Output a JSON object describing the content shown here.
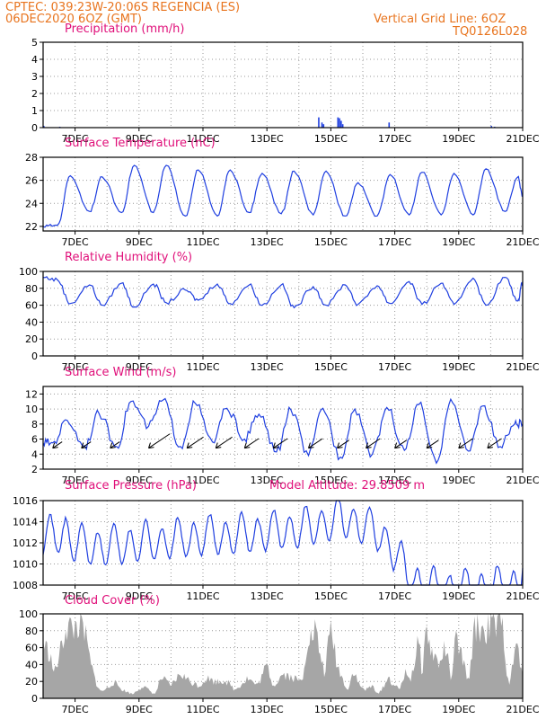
{
  "header": {
    "line1": "CPTEC:   039:23W-20:06S   REGENCIA (ES)",
    "date": "06DEC2020 6OZ (GMT)",
    "grid_note": "Vertical Grid Line: 6OZ",
    "code": "TQ0126L028"
  },
  "colors": {
    "header": "#e8741e",
    "title": "#e0107a",
    "line": "#1f3fe0",
    "cloud": "#a6a6a6",
    "grid": "#999999"
  },
  "chart_data": [
    {
      "id": "precip",
      "type": "bar",
      "title": "Precipitation  (mm/h)",
      "ylim": [
        0,
        5
      ],
      "yticks": [
        0,
        1,
        2,
        3,
        4,
        5
      ],
      "xticks": [
        "7DEC",
        "9DEC",
        "11DEC",
        "13DEC",
        "15DEC",
        "17DEC",
        "19DEC",
        "21DEC"
      ],
      "x": [
        0.0,
        0.5,
        8.6,
        8.7,
        8.75,
        9.2,
        9.25,
        9.3,
        9.35,
        10.8,
        14.0,
        14.1
      ],
      "values": [
        0.1,
        0.05,
        0.6,
        0.3,
        0.2,
        0.6,
        0.55,
        0.4,
        0.2,
        0.3,
        0.1,
        0.05
      ]
    },
    {
      "id": "temp",
      "type": "line",
      "title": "Surface Temperature (nC)",
      "ylim": [
        21.6,
        28
      ],
      "yticks": [
        22,
        24,
        26,
        28
      ],
      "xticks": [
        "7DEC",
        "9DEC",
        "11DEC",
        "13DEC",
        "15DEC",
        "17DEC",
        "19DEC",
        "21DEC"
      ],
      "daily_min": [
        22.1,
        23.3,
        23.2,
        23.2,
        22.9,
        22.9,
        23.2,
        23.1,
        23.0,
        22.9,
        22.9,
        23.0,
        23.0,
        23.0,
        23.3
      ],
      "daily_max": [
        26.4,
        26.3,
        27.3,
        27.3,
        26.9,
        26.9,
        26.6,
        26.8,
        26.8,
        25.8,
        26.5,
        26.7,
        26.6,
        27.0,
        26.3
      ],
      "end_value": 24.6
    },
    {
      "id": "rh",
      "type": "line",
      "title": "Relative Humidity  (%)",
      "ylim": [
        0,
        100
      ],
      "yticks": [
        0,
        20,
        40,
        60,
        80,
        100
      ],
      "xticks": [
        "7DEC",
        "9DEC",
        "11DEC",
        "13DEC",
        "15DEC",
        "17DEC",
        "19DEC",
        "21DEC"
      ],
      "daily_min": [
        62,
        60,
        58,
        63,
        66,
        62,
        60,
        57,
        60,
        61,
        62,
        61,
        61,
        60,
        65
      ],
      "daily_max": [
        90,
        84,
        86,
        85,
        78,
        85,
        84,
        84,
        82,
        84,
        83,
        88,
        86,
        92,
        93
      ],
      "start_value": 93,
      "end_value": 88
    },
    {
      "id": "wind",
      "type": "line",
      "title": "Surface Wind  (m/s)",
      "ylim": [
        2,
        13
      ],
      "yticks": [
        2,
        4,
        6,
        8,
        10,
        12
      ],
      "xticks": [
        "7DEC",
        "9DEC",
        "11DEC",
        "13DEC",
        "15DEC",
        "17DEC",
        "19DEC",
        "21DEC"
      ],
      "daily_min": [
        5.5,
        5.1,
        5.0,
        7.7,
        5.0,
        5.6,
        6.0,
        4.3,
        3.8,
        3.6,
        4.0,
        4.5,
        2.8,
        4.4,
        5.0
      ],
      "daily_max": [
        8.5,
        9.4,
        11.0,
        11.2,
        10.8,
        10.1,
        9.3,
        9.9,
        10.1,
        10.0,
        10.2,
        10.6,
        11.3,
        10.4,
        8.0
      ],
      "barbs_x": [
        0.3,
        1.2,
        2.1,
        3.3,
        4.5,
        5.4,
        6.3,
        7.2,
        8.3,
        9.2,
        10.1,
        11.0,
        12.0,
        13.0,
        13.9
      ],
      "barbs_speed": [
        4,
        4,
        4,
        9,
        7,
        7,
        6,
        6,
        6,
        5,
        6,
        5,
        5,
        6,
        6
      ]
    },
    {
      "id": "pres",
      "type": "line",
      "title": "Surface Pressure  (hPa)",
      "subtitle": "Model Altitude: 29.8509  m",
      "ylim": [
        1008,
        1016
      ],
      "yticks": [
        1008,
        1010,
        1012,
        1014,
        1016
      ],
      "xticks": [
        "7DEC",
        "9DEC",
        "11DEC",
        "13DEC",
        "15DEC",
        "17DEC",
        "19DEC",
        "21DEC"
      ],
      "anchors_x": [
        0,
        0.7,
        1.0,
        2.0,
        3.0,
        4.0,
        5.0,
        6.0,
        7.0,
        8.0,
        9.0,
        9.3,
        10.5,
        11.0,
        11.5,
        12.0,
        13.0,
        14.0,
        15.0
      ],
      "anchors_mean": [
        1012.4,
        1013.0,
        1011.8,
        1011.6,
        1012.0,
        1012.2,
        1012.6,
        1012.7,
        1013.0,
        1013.3,
        1014.0,
        1014.5,
        1013.0,
        1011.0,
        1008.6,
        1007.7,
        1007.6,
        1007.7,
        1008.0
      ],
      "amplitude": 1.7
    },
    {
      "id": "cloud",
      "type": "area",
      "title": "Cloud Cover  (%)",
      "ylim": [
        0,
        100
      ],
      "yticks": [
        0,
        20,
        40,
        60,
        80,
        100
      ],
      "xticks": [
        "7DEC",
        "9DEC",
        "11DEC",
        "13DEC",
        "15DEC",
        "17DEC",
        "19DEC",
        "21DEC"
      ],
      "x": [
        0,
        0.1,
        0.2,
        0.35,
        0.5,
        0.7,
        0.8,
        0.95,
        1.05,
        1.2,
        1.3,
        1.5,
        1.65,
        1.8,
        2.0,
        2.2,
        2.5,
        2.8,
        3.1,
        3.3,
        3.5,
        3.7,
        4.0,
        4.3,
        4.6,
        4.9,
        5.1,
        5.4,
        5.7,
        6.0,
        6.4,
        6.7,
        7.0,
        7.2,
        7.5,
        7.8,
        8.1,
        8.3,
        8.4,
        8.5,
        8.6,
        8.8,
        9.0,
        9.2,
        9.4,
        9.55,
        9.7,
        9.9,
        10.1,
        10.3,
        10.5,
        10.8,
        11.0,
        11.15,
        11.3,
        11.5,
        11.6,
        11.75,
        11.85,
        12.0,
        12.1,
        12.25,
        12.4,
        12.6,
        12.75,
        12.9,
        13.1,
        13.3,
        13.5,
        13.6,
        13.8,
        14.0,
        14.2,
        14.3,
        14.4,
        14.5,
        14.6,
        14.8,
        15.0
      ],
      "values": [
        70,
        60,
        55,
        30,
        50,
        85,
        88,
        82,
        90,
        85,
        80,
        40,
        20,
        8,
        12,
        20,
        10,
        5,
        15,
        10,
        5,
        25,
        15,
        30,
        20,
        15,
        25,
        20,
        22,
        10,
        25,
        15,
        40,
        15,
        30,
        25,
        20,
        80,
        70,
        85,
        65,
        30,
        85,
        40,
        20,
        10,
        35,
        15,
        10,
        15,
        5,
        25,
        15,
        10,
        30,
        25,
        40,
        70,
        30,
        88,
        60,
        50,
        40,
        65,
        20,
        70,
        50,
        20,
        85,
        88,
        80,
        90,
        85,
        93,
        80,
        35,
        15,
        70,
        25
      ]
    }
  ]
}
